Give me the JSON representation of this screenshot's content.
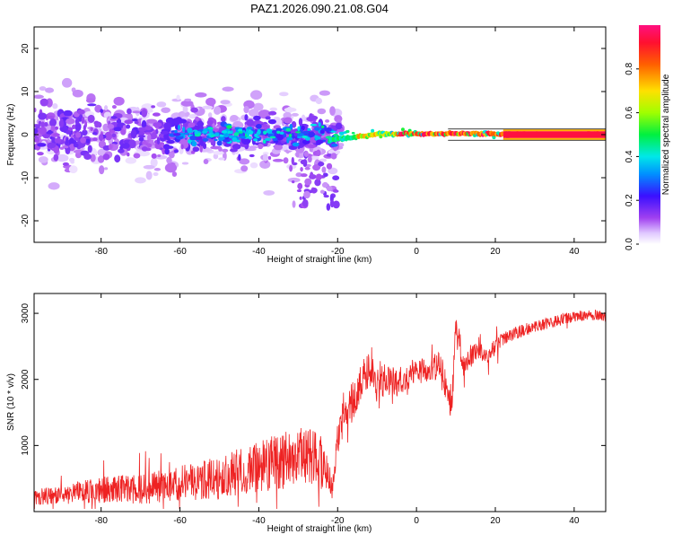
{
  "page": {
    "title": "PAZ1.2026.090.21.08.G04"
  },
  "colors": {
    "snr_line": "#ee2222",
    "colormap": [
      "#f4e6ff",
      "#c9a3f5",
      "#8a2be2",
      "#3a1cf0",
      "#1a7ef5",
      "#00e0e0",
      "#00e060",
      "#c8ff00",
      "#ffcc00",
      "#ff4400",
      "#ff1040"
    ],
    "track": "#ff1040"
  },
  "chart_data": [
    {
      "id": "spectrogram",
      "type": "heatmap",
      "title": "PAZ1.2026.090.21.08.G04",
      "xlabel": "Height of straight line (km)",
      "ylabel": "Frequency (Hz)",
      "xlim": [
        -97,
        48
      ],
      "ylim": [
        -25,
        25
      ],
      "xticks": [
        -80,
        -60,
        -40,
        -20,
        0,
        20,
        40
      ],
      "yticks": [
        -20,
        -10,
        0,
        10,
        20
      ],
      "colorbar": {
        "label": "Normalized spectral amplitude",
        "range": [
          0,
          1
        ],
        "ticks": [
          0.0,
          0.2,
          0.4,
          0.6,
          0.8
        ],
        "tick_labels": [
          "0.0",
          "0.2",
          "0.4",
          "0.6",
          "0.8"
        ]
      },
      "description_regions": [
        {
          "x_range": [
            -97,
            -20
          ],
          "freq_spread_hz": 14,
          "amplitude": "low (0.1-0.35)"
        },
        {
          "x_range": [
            -60,
            -20
          ],
          "freq_spread_hz": 4,
          "amplitude": "medium (0.2-0.45)"
        },
        {
          "x_range": [
            -20,
            48
          ],
          "freq_center_hz": 0,
          "amplitude": "high (0.5-1.0)"
        }
      ]
    },
    {
      "id": "snr",
      "type": "line",
      "xlabel": "Height of straight line (km)",
      "ylabel": "SNR (10 * v/v)",
      "xlim": [
        -97,
        48
      ],
      "ylim": [
        0,
        3300
      ],
      "xticks": [
        -80,
        -60,
        -40,
        -20,
        0,
        20,
        40
      ],
      "yticks": [
        1000,
        2000,
        3000
      ],
      "series": [
        {
          "name": "SNR",
          "x": [
            -97,
            -90,
            -85,
            -80,
            -75,
            -70,
            -65,
            -60,
            -55,
            -50,
            -45,
            -40,
            -35,
            -30,
            -25,
            -21,
            -20,
            -18,
            -15,
            -12,
            -10,
            -8,
            -5,
            -2,
            0,
            3,
            6,
            9,
            10,
            12,
            15,
            18,
            20,
            22,
            25,
            30,
            35,
            40,
            45,
            48
          ],
          "values": [
            220,
            250,
            300,
            330,
            350,
            320,
            380,
            420,
            460,
            520,
            600,
            680,
            760,
            820,
            800,
            400,
            1150,
            1500,
            1800,
            2200,
            1900,
            2000,
            1950,
            2050,
            2150,
            2100,
            2250,
            1600,
            2800,
            2200,
            2450,
            2350,
            2500,
            2600,
            2700,
            2800,
            2880,
            2950,
            2980,
            2950
          ],
          "noise_amplitude": [
            120,
            140,
            170,
            200,
            210,
            230,
            250,
            270,
            300,
            330,
            360,
            390,
            430,
            460,
            450,
            250,
            300,
            300,
            280,
            300,
            260,
            240,
            220,
            200,
            200,
            180,
            220,
            300,
            250,
            200,
            160,
            130,
            120,
            110,
            100,
            90,
            90,
            80,
            80,
            80
          ]
        }
      ]
    }
  ]
}
